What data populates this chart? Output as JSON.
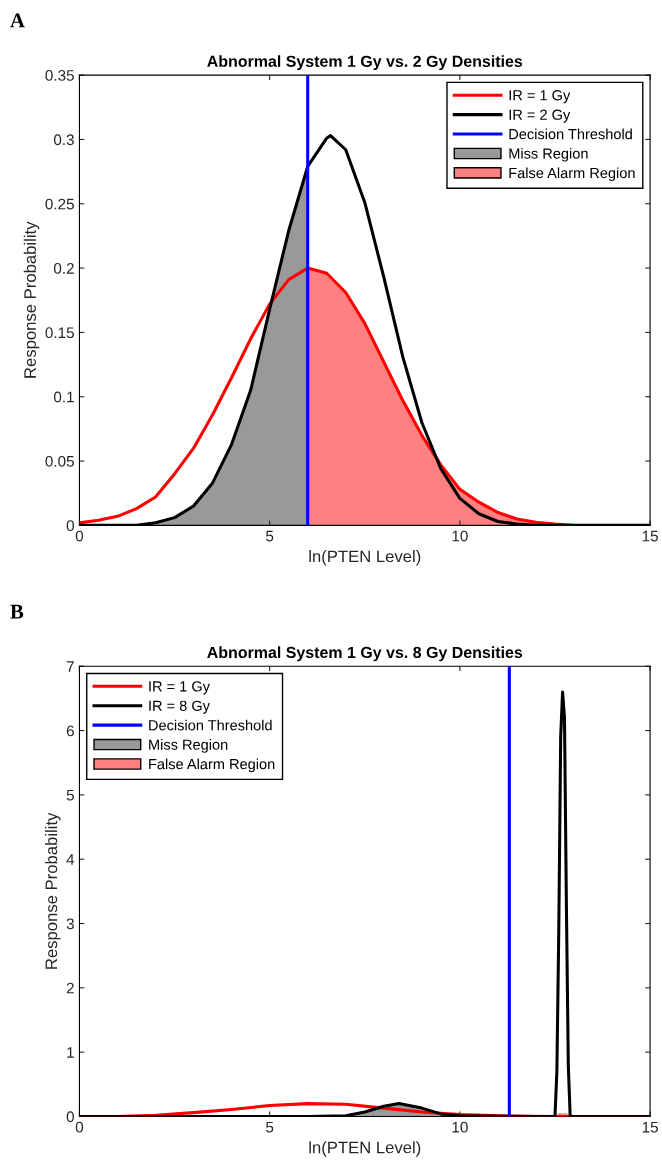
{
  "chart_data": [
    {
      "type": "line",
      "title": "Abnormal System 1 Gy vs. 2 Gy Densities",
      "xlabel": "ln(PTEN Level)",
      "ylabel": "Response Probability",
      "annotations": [
        "A"
      ],
      "xlim": [
        0,
        15
      ],
      "xticks": [
        0,
        5,
        10,
        15
      ],
      "ylim": [
        0,
        0.35
      ],
      "yticks": [
        0,
        0.05,
        0.1,
        0.15,
        0.2,
        0.25,
        0.3,
        0.35
      ],
      "legend": "top right",
      "series": [
        {
          "name": "IR = 1 Gy",
          "color": "#ff0000",
          "x": [
            0,
            0.5,
            1,
            1.5,
            2,
            2.5,
            3,
            3.5,
            4,
            4.5,
            5,
            5.5,
            6,
            6.5,
            7,
            7.5,
            8,
            8.5,
            9,
            9.5,
            10,
            10.5,
            11,
            11.5,
            12,
            12.5,
            13
          ],
          "values": [
            0.002,
            0.004,
            0.007,
            0.013,
            0.022,
            0.04,
            0.06,
            0.086,
            0.115,
            0.145,
            0.172,
            0.191,
            0.2,
            0.196,
            0.181,
            0.157,
            0.127,
            0.097,
            0.07,
            0.047,
            0.028,
            0.018,
            0.01,
            0.005,
            0.0025,
            0.001,
            0
          ]
        },
        {
          "name": "IR = 2 Gy",
          "color": "#000000",
          "x": [
            0,
            1,
            1.5,
            2,
            2.5,
            3,
            3.5,
            4,
            4.5,
            5,
            5.5,
            6,
            6.5,
            6.6,
            7,
            7.5,
            8,
            8.5,
            9,
            9.5,
            10,
            10.5,
            11,
            11.5,
            12,
            13,
            14,
            15
          ],
          "values": [
            0,
            0,
            0,
            0.002,
            0.006,
            0.015,
            0.033,
            0.063,
            0.105,
            0.168,
            0.229,
            0.279,
            0.301,
            0.303,
            0.292,
            0.251,
            0.193,
            0.131,
            0.08,
            0.044,
            0.021,
            0.009,
            0.003,
            0.001,
            0,
            0,
            0,
            0
          ]
        },
        {
          "name": "Decision Threshold",
          "color": "#0000ff",
          "x": [
            6,
            6
          ],
          "values": [
            0,
            0.35
          ]
        },
        {
          "name": "Miss Region",
          "type": "area",
          "color": "#999999",
          "x": [
            0,
            1,
            1.5,
            2,
            2.5,
            3,
            3.5,
            4,
            4.5,
            5,
            5.5,
            6
          ],
          "values": [
            0,
            0,
            0,
            0.002,
            0.006,
            0.015,
            0.033,
            0.063,
            0.105,
            0.168,
            0.229,
            0.279
          ]
        },
        {
          "name": "False Alarm Region",
          "type": "area",
          "color": "#ff8080",
          "x": [
            6,
            6.5,
            7,
            7.5,
            8,
            8.5,
            9,
            9.5,
            10,
            10.5,
            11,
            11.5,
            12,
            12.5,
            13,
            14,
            15
          ],
          "values": [
            0.2,
            0.196,
            0.181,
            0.157,
            0.127,
            0.097,
            0.07,
            0.047,
            0.028,
            0.018,
            0.01,
            0.005,
            0.0025,
            0.001,
            0,
            0,
            0
          ]
        }
      ]
    },
    {
      "type": "line",
      "title": "Abnormal System 1 Gy vs. 8 Gy Densities",
      "xlabel": "ln(PTEN Level)",
      "ylabel": "Response Probability",
      "annotations": [
        "B"
      ],
      "xlim": [
        0,
        15
      ],
      "xticks": [
        0,
        5,
        10,
        15
      ],
      "ylim": [
        0,
        7
      ],
      "yticks": [
        0,
        1,
        2,
        3,
        4,
        5,
        6,
        7
      ],
      "legend": "top left",
      "series": [
        {
          "name": "IR = 1 Gy",
          "color": "#ff0000",
          "x": [
            0,
            1,
            2,
            3,
            4,
            5,
            6,
            7,
            8,
            9,
            10,
            11,
            12,
            13,
            14,
            15
          ],
          "values": [
            0,
            0,
            0.02,
            0.06,
            0.11,
            0.17,
            0.2,
            0.19,
            0.13,
            0.07,
            0.03,
            0.01,
            0,
            0,
            0,
            0
          ]
        },
        {
          "name": "IR = 8 Gy",
          "color": "#000000",
          "x": [
            0,
            6,
            7,
            7.5,
            8,
            8.4,
            9,
            9.5,
            10,
            12.5,
            12.55,
            12.6,
            12.65,
            12.7,
            12.75,
            12.8,
            12.85,
            12.9,
            15
          ],
          "values": [
            0,
            0,
            0.01,
            0.07,
            0.16,
            0.2,
            0.13,
            0.04,
            0.01,
            0,
            0.7,
            2.9,
            5.9,
            6.6,
            6.2,
            3.3,
            0.8,
            0,
            0
          ]
        },
        {
          "name": "Decision Threshold",
          "color": "#0000ff",
          "x": [
            11.3,
            11.3
          ],
          "values": [
            0,
            7
          ]
        },
        {
          "name": "Miss Region",
          "type": "area",
          "color": "#999999",
          "x": [
            0,
            6,
            7,
            7.5,
            8,
            8.4,
            9,
            9.5,
            10,
            11.3
          ],
          "values": [
            0,
            0,
            0.01,
            0.07,
            0.16,
            0.2,
            0.13,
            0.04,
            0.01,
            0
          ]
        },
        {
          "name": "False Alarm Region",
          "type": "area",
          "color": "#ff8080",
          "x": [
            11.3,
            12.5,
            12.6,
            12.7,
            12.8,
            12.9,
            15
          ],
          "values": [
            0,
            0,
            0.05,
            0.05,
            0.05,
            0,
            0
          ]
        }
      ]
    }
  ]
}
